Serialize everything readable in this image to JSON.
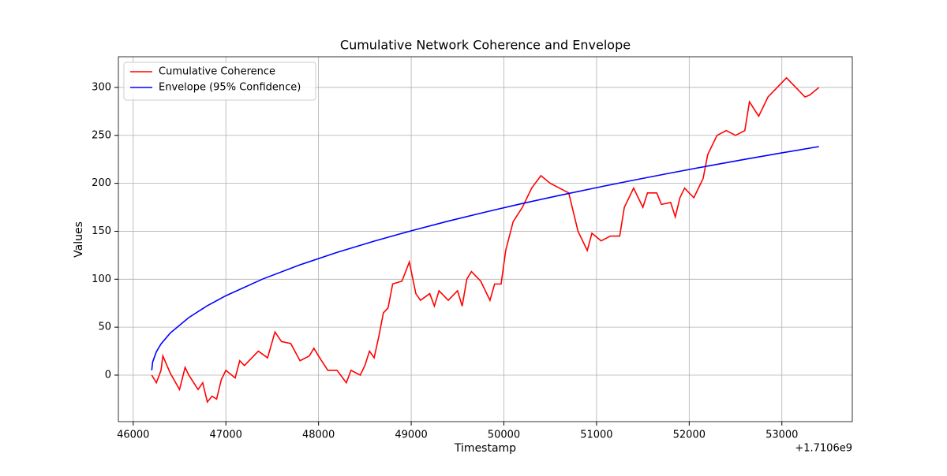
{
  "chart_data": {
    "type": "line",
    "title": "Cumulative Network Coherence and Envelope",
    "xlabel": "Timestamp",
    "ylabel": "Values",
    "x_offset_label": "+1.7106e9",
    "xlim": [
      45840,
      53760
    ],
    "xticks": [
      46000,
      47000,
      48000,
      49000,
      50000,
      51000,
      52000,
      53000
    ],
    "ylim": [
      -48.5,
      332
    ],
    "yticks": [
      0,
      50,
      100,
      150,
      200,
      250,
      300
    ],
    "grid": true,
    "legend": "upper left",
    "series": [
      {
        "name": "Cumulative Coherence",
        "color": "#ff0000",
        "x": [
          46200,
          46250,
          46300,
          46320,
          46400,
          46500,
          46560,
          46600,
          46700,
          46750,
          46800,
          46850,
          46900,
          46950,
          47000,
          47100,
          47150,
          47200,
          47300,
          47350,
          47450,
          47530,
          47600,
          47700,
          47800,
          47900,
          47950,
          48000,
          48100,
          48200,
          48300,
          48350,
          48450,
          48500,
          48550,
          48600,
          48650,
          48700,
          48750,
          48800,
          48900,
          48980,
          49050,
          49100,
          49200,
          49250,
          49300,
          49400,
          49500,
          49550,
          49600,
          49650,
          49750,
          49850,
          49900,
          49970,
          50020,
          50100,
          50200,
          50300,
          50400,
          50500,
          50600,
          50700,
          50800,
          50900,
          50950,
          51050,
          51150,
          51250,
          51300,
          51400,
          51450,
          51500,
          51550,
          51650,
          51700,
          51800,
          51850,
          51900,
          51950,
          52050,
          52150,
          52200,
          52300,
          52400,
          52500,
          52600,
          52650,
          52750,
          52850,
          52950,
          53050,
          53150,
          53250,
          53300,
          53400
        ],
        "values": [
          0,
          -8,
          5,
          20,
          2,
          -15,
          8,
          0,
          -15,
          -8,
          -28,
          -22,
          -25,
          -5,
          5,
          -3,
          15,
          10,
          20,
          25,
          18,
          45,
          35,
          33,
          15,
          20,
          28,
          20,
          5,
          5,
          -8,
          5,
          0,
          10,
          25,
          18,
          40,
          65,
          70,
          95,
          98,
          118,
          85,
          78,
          85,
          72,
          88,
          78,
          88,
          72,
          100,
          108,
          98,
          78,
          95,
          95,
          130,
          160,
          175,
          195,
          208,
          200,
          195,
          190,
          150,
          130,
          148,
          140,
          145,
          145,
          175,
          195,
          185,
          175,
          190,
          190,
          178,
          180,
          165,
          185,
          195,
          185,
          205,
          230,
          250,
          255,
          250,
          255,
          285,
          270,
          290,
          300,
          310,
          300,
          290,
          292,
          300
        ]
      },
      {
        "name": "Envelope (95% Confidence)",
        "color": "#0000ff",
        "x": [
          46200,
          46210,
          46250,
          46300,
          46400,
          46600,
          46800,
          47000,
          47400,
          47800,
          48200,
          48600,
          49000,
          49400,
          49800,
          50200,
          50600,
          51000,
          51400,
          51800,
          52200,
          52600,
          53000,
          53400
        ],
        "values": [
          5,
          13.7,
          24.4,
          32.5,
          43.9,
          60,
          72.4,
          82.8,
          100.3,
          115,
          128,
          139.7,
          150.5,
          160.6,
          170,
          179,
          187.4,
          195.5,
          203.3,
          210.8,
          218,
          225,
          231.8,
          238.3
        ]
      }
    ]
  }
}
